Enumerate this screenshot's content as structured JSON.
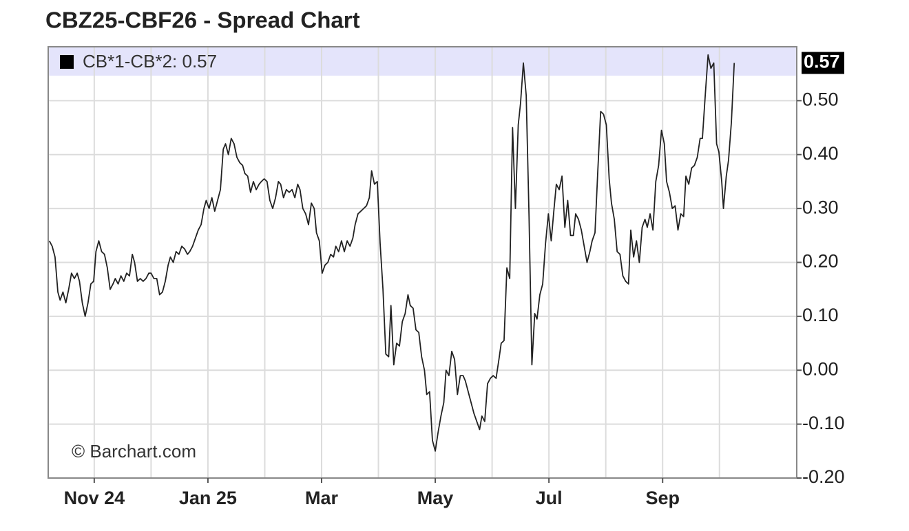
{
  "chart_data": {
    "type": "line",
    "title": "CBZ25-CBF26 - Spread Chart",
    "watermark": "© Barchart.com",
    "x": [
      -0.79,
      -0.74,
      -0.69,
      -0.64,
      -0.6,
      -0.55,
      -0.5,
      -0.45,
      -0.4,
      -0.35,
      -0.3,
      -0.26,
      -0.21,
      -0.16,
      -0.11,
      -0.06,
      -0.01,
      0.03,
      0.08,
      0.13,
      0.18,
      0.23,
      0.28,
      0.33,
      0.37,
      0.42,
      0.47,
      0.52,
      0.57,
      0.62,
      0.67,
      0.71,
      0.76,
      0.81,
      0.86,
      0.91,
      0.96,
      1.0,
      1.05,
      1.1,
      1.15,
      1.2,
      1.25,
      1.3,
      1.34,
      1.39,
      1.44,
      1.49,
      1.54,
      1.59,
      1.64,
      1.68,
      1.73,
      1.78,
      1.83,
      1.88,
      1.93,
      1.97,
      2.02,
      2.07,
      2.12,
      2.17,
      2.22,
      2.27,
      2.31,
      2.36,
      2.41,
      2.46,
      2.51,
      2.56,
      2.61,
      2.65,
      2.7,
      2.75,
      2.8,
      2.85,
      2.9,
      2.94,
      2.99,
      3.04,
      3.09,
      3.14,
      3.19,
      3.24,
      3.28,
      3.33,
      3.38,
      3.43,
      3.48,
      3.53,
      3.58,
      3.62,
      3.67,
      3.72,
      3.77,
      3.82,
      3.87,
      3.91,
      3.96,
      4.01,
      4.06,
      4.11,
      4.16,
      4.21,
      4.25,
      4.3,
      4.35,
      4.4,
      4.45,
      4.5,
      4.55,
      4.59,
      4.64,
      4.69,
      4.74,
      4.79,
      4.84,
      4.88,
      4.93,
      4.98,
      5.03,
      5.08,
      5.13,
      5.18,
      5.22,
      5.27,
      5.32,
      5.37,
      5.42,
      5.47,
      5.52,
      5.56,
      5.61,
      5.66,
      5.71,
      5.76,
      5.81,
      5.85,
      5.9,
      5.95,
      6.0,
      6.05,
      6.1,
      6.15,
      6.19,
      6.24,
      6.29,
      6.34,
      6.39,
      6.44,
      6.49,
      6.53,
      6.58,
      6.63,
      6.68,
      6.73,
      6.78,
      6.82,
      6.87,
      6.92,
      6.97,
      7.02,
      7.07,
      7.12,
      7.16,
      7.21,
      7.26,
      7.31,
      7.36,
      7.41,
      7.46,
      7.5,
      7.55,
      7.6,
      7.65,
      7.7,
      7.75,
      7.79,
      7.84,
      7.89,
      7.94,
      7.99,
      8.04,
      8.09,
      8.13,
      8.18,
      8.23,
      8.28,
      8.33,
      8.38,
      8.43,
      8.47,
      8.52,
      8.57,
      8.62,
      8.67,
      8.72,
      8.76,
      8.81,
      8.86,
      8.91,
      8.96,
      9.01,
      9.06,
      9.1,
      9.15,
      9.2,
      9.25,
      9.3,
      9.35,
      9.4,
      9.44,
      9.49,
      9.54,
      9.59,
      9.64,
      9.69,
      9.73,
      9.78,
      9.83,
      9.88,
      9.93,
      9.98,
      10.03,
      10.07,
      10.12,
      10.17,
      10.22,
      10.27,
      10.32,
      10.37,
      10.41,
      10.46,
      10.51,
      10.56,
      10.61,
      10.66,
      10.7,
      10.75,
      10.8,
      10.85,
      10.9,
      10.95,
      10.99,
      11.04,
      11.07,
      11.12,
      11.16,
      11.21,
      11.26
    ],
    "series": [
      {
        "name": "CB*1-CB*2: 0.57",
        "color": "#222222",
        "values": [
          0.24,
          0.23,
          0.21,
          0.145,
          0.13,
          0.145,
          0.125,
          0.15,
          0.18,
          0.17,
          0.18,
          0.165,
          0.125,
          0.1,
          0.125,
          0.16,
          0.165,
          0.22,
          0.24,
          0.22,
          0.215,
          0.19,
          0.15,
          0.16,
          0.17,
          0.16,
          0.175,
          0.165,
          0.18,
          0.175,
          0.215,
          0.2,
          0.165,
          0.17,
          0.165,
          0.17,
          0.18,
          0.18,
          0.17,
          0.17,
          0.14,
          0.145,
          0.165,
          0.195,
          0.21,
          0.2,
          0.22,
          0.215,
          0.23,
          0.225,
          0.215,
          0.22,
          0.23,
          0.245,
          0.26,
          0.27,
          0.3,
          0.315,
          0.3,
          0.32,
          0.295,
          0.315,
          0.335,
          0.41,
          0.42,
          0.4,
          0.43,
          0.42,
          0.395,
          0.385,
          0.38,
          0.365,
          0.36,
          0.33,
          0.35,
          0.335,
          0.345,
          0.35,
          0.355,
          0.35,
          0.315,
          0.3,
          0.32,
          0.35,
          0.345,
          0.32,
          0.335,
          0.33,
          0.335,
          0.32,
          0.345,
          0.335,
          0.3,
          0.29,
          0.27,
          0.31,
          0.3,
          0.255,
          0.24,
          0.18,
          0.195,
          0.2,
          0.215,
          0.21,
          0.23,
          0.22,
          0.24,
          0.22,
          0.24,
          0.23,
          0.245,
          0.27,
          0.29,
          0.295,
          0.3,
          0.305,
          0.32,
          0.37,
          0.345,
          0.35,
          0.235,
          0.15,
          0.03,
          0.025,
          0.12,
          0.01,
          0.05,
          0.045,
          0.09,
          0.105,
          0.14,
          0.12,
          0.115,
          0.075,
          0.07,
          0.025,
          0.0,
          -0.045,
          -0.04,
          -0.13,
          -0.15,
          -0.115,
          -0.085,
          -0.06,
          0.0,
          -0.01,
          0.035,
          0.02,
          -0.045,
          -0.01,
          -0.01,
          -0.02,
          -0.04,
          -0.06,
          -0.08,
          -0.095,
          -0.11,
          -0.085,
          -0.095,
          -0.025,
          -0.015,
          -0.01,
          -0.015,
          0.02,
          0.05,
          0.055,
          0.19,
          0.17,
          0.45,
          0.3,
          0.455,
          0.495,
          0.57,
          0.51,
          0.285,
          0.01,
          0.105,
          0.095,
          0.14,
          0.16,
          0.235,
          0.29,
          0.24,
          0.3,
          0.345,
          0.335,
          0.36,
          0.265,
          0.315,
          0.25,
          0.25,
          0.29,
          0.28,
          0.26,
          0.23,
          0.2,
          0.22,
          0.24,
          0.255,
          0.37,
          0.48,
          0.475,
          0.455,
          0.355,
          0.31,
          0.28,
          0.22,
          0.215,
          0.175,
          0.165,
          0.16,
          0.26,
          0.21,
          0.24,
          0.2,
          0.265,
          0.28,
          0.265,
          0.29,
          0.26,
          0.35,
          0.38,
          0.445,
          0.42,
          0.35,
          0.33,
          0.3,
          0.305,
          0.26,
          0.29,
          0.285,
          0.36,
          0.345,
          0.375,
          0.38,
          0.395,
          0.43,
          0.43,
          0.51,
          0.585,
          0.56,
          0.57,
          0.42,
          0.405,
          0.35,
          0.3,
          0.36,
          0.39,
          0.46,
          0.57
        ]
      }
    ],
    "xlim": [
      -0.81,
      12.36
    ],
    "xticks": [
      {
        "value": 0,
        "label": "Nov 24"
      },
      {
        "value": 2,
        "label": "Jan 25"
      },
      {
        "value": 4,
        "label": "Mar"
      },
      {
        "value": 6,
        "label": "May"
      },
      {
        "value": 8,
        "label": "Jul"
      },
      {
        "value": 10,
        "label": "Sep"
      }
    ],
    "xminor_ticks": [
      1,
      3,
      5,
      7,
      9,
      11
    ],
    "ylim": [
      -0.2,
      0.6
    ],
    "yticks": [
      {
        "value": -0.2,
        "label": "-0.20"
      },
      {
        "value": -0.1,
        "label": "-0.10"
      },
      {
        "value": 0,
        "label": "0.00"
      },
      {
        "value": 0.1,
        "label": "0.10"
      },
      {
        "value": 0.2,
        "label": "0.20"
      },
      {
        "value": 0.3,
        "label": "0.30"
      },
      {
        "value": 0.4,
        "label": "0.40"
      },
      {
        "value": 0.5,
        "label": "0.50"
      }
    ],
    "y_axis_side": "right",
    "grid": true
  }
}
